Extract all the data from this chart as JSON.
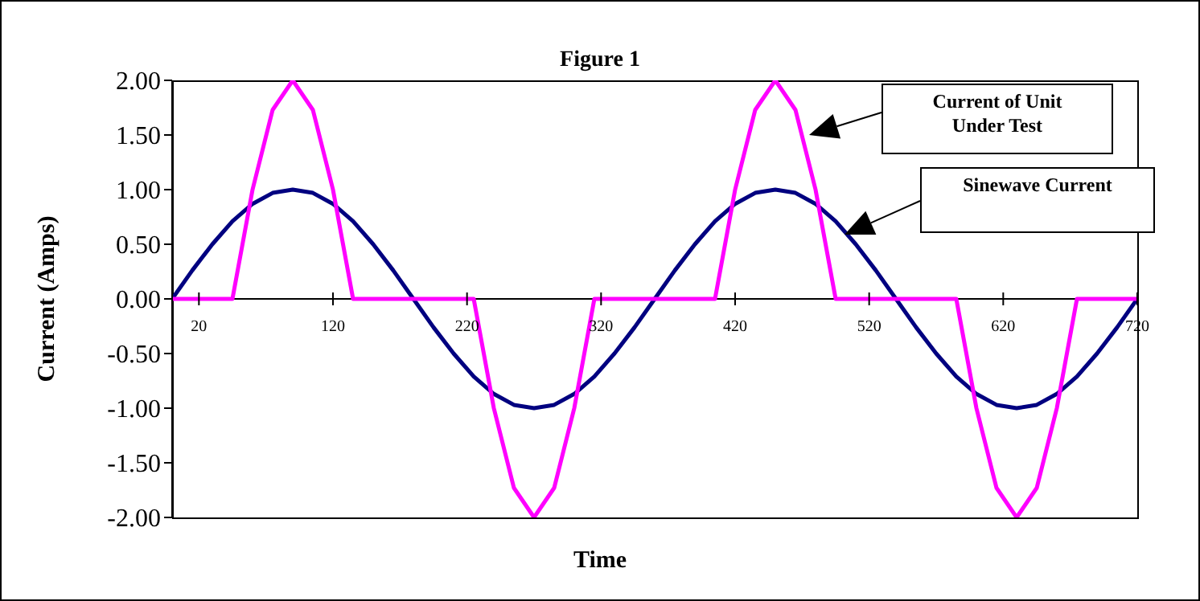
{
  "chart_data": {
    "type": "line",
    "title": "Figure 1",
    "xlabel": "Time",
    "ylabel": "Current (Amps)",
    "xlim": [
      0,
      720
    ],
    "xticks": [
      20,
      120,
      220,
      320,
      420,
      520,
      620,
      720
    ],
    "ylim": [
      -2,
      2
    ],
    "yticks": [
      {
        "value": -2,
        "label": "-2.00"
      },
      {
        "value": -1.5,
        "label": "-1.50"
      },
      {
        "value": -1,
        "label": "-1.00"
      },
      {
        "value": -0.5,
        "label": "-0.50"
      },
      {
        "value": 0,
        "label": "0.00"
      },
      {
        "value": 0.5,
        "label": "0.50"
      },
      {
        "value": 1,
        "label": "1.00"
      },
      {
        "value": 1.5,
        "label": "1.50"
      },
      {
        "value": 2,
        "label": "2.00"
      }
    ],
    "x": [
      0,
      15,
      30,
      45,
      60,
      75,
      90,
      105,
      120,
      135,
      150,
      165,
      180,
      195,
      210,
      225,
      240,
      255,
      270,
      285,
      300,
      315,
      330,
      345,
      360,
      375,
      390,
      405,
      420,
      435,
      450,
      465,
      480,
      495,
      510,
      525,
      540,
      555,
      570,
      585,
      600,
      615,
      630,
      645,
      660,
      675,
      690,
      705,
      720
    ],
    "annotations": [
      "Current of Unit Under Test",
      "Sinewave Current"
    ],
    "series": [
      {
        "color": "#000080",
        "values": [
          0,
          0.26,
          0.5,
          0.71,
          0.87,
          0.97,
          1,
          0.97,
          0.87,
          0.71,
          0.5,
          0.26,
          0,
          -0.26,
          -0.5,
          -0.71,
          -0.87,
          -0.97,
          -1,
          -0.97,
          -0.87,
          -0.71,
          -0.5,
          -0.26,
          0,
          0.26,
          0.5,
          0.71,
          0.87,
          0.97,
          1,
          0.97,
          0.87,
          0.71,
          0.5,
          0.26,
          0,
          -0.26,
          -0.5,
          -0.71,
          -0.87,
          -0.97,
          -1,
          -0.97,
          -0.87,
          -0.71,
          -0.5,
          -0.26,
          0
        ]
      },
      {
        "color": "#ff00ff",
        "values": [
          0,
          0,
          0,
          0,
          1,
          1.73,
          2,
          1.73,
          1,
          0,
          0,
          0,
          0,
          0,
          0,
          0,
          -1,
          -1.73,
          -2,
          -1.73,
          -1,
          0,
          0,
          0,
          0,
          0,
          0,
          0,
          1,
          1.73,
          2,
          1.73,
          1,
          0,
          0,
          0,
          0,
          0,
          0,
          0,
          -1,
          -1.73,
          -2,
          -1.73,
          -1,
          0,
          0,
          0,
          0
        ]
      }
    ]
  }
}
